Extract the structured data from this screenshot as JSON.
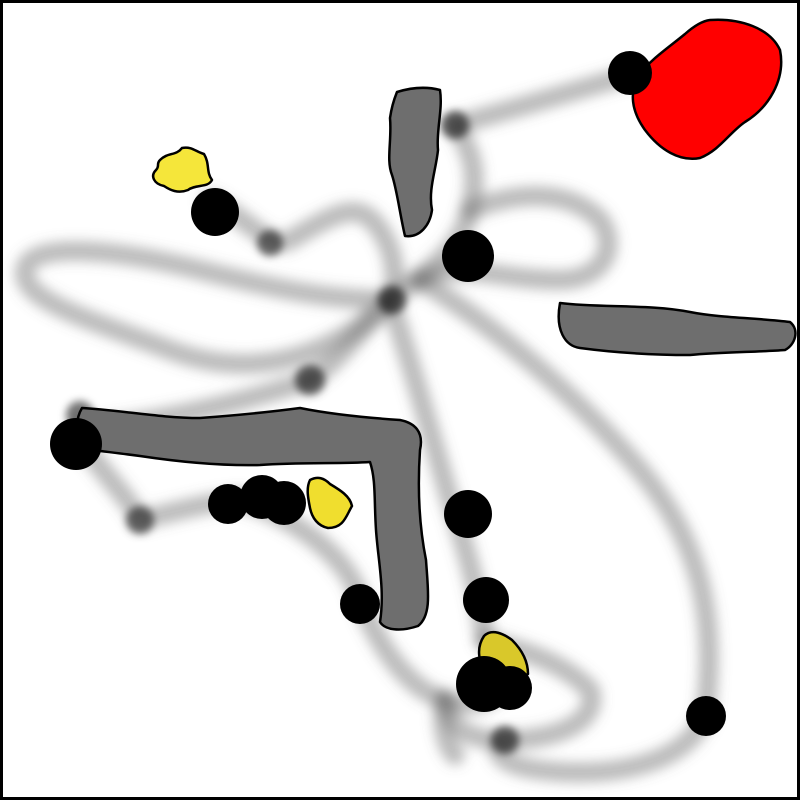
{
  "scene": {
    "background": "#ffffff",
    "border_color": "#000000",
    "trail_color": "#5a5a5a",
    "wall_color": "#6e6e6e",
    "dot_color": "#000000",
    "goal_color": "#ff0000",
    "pickup_color": "#f5e63a",
    "outline_color": "#000000"
  },
  "objects": {
    "goal": {
      "kind": "goal-zone",
      "color": "#ff0000"
    },
    "walls": [
      "wall-vertical-top",
      "wall-horizontal-right",
      "wall-l-shape"
    ],
    "pickups": [
      "pickup-top-left",
      "pickup-middle",
      "pickup-bottom"
    ],
    "agents": "black-dots"
  }
}
